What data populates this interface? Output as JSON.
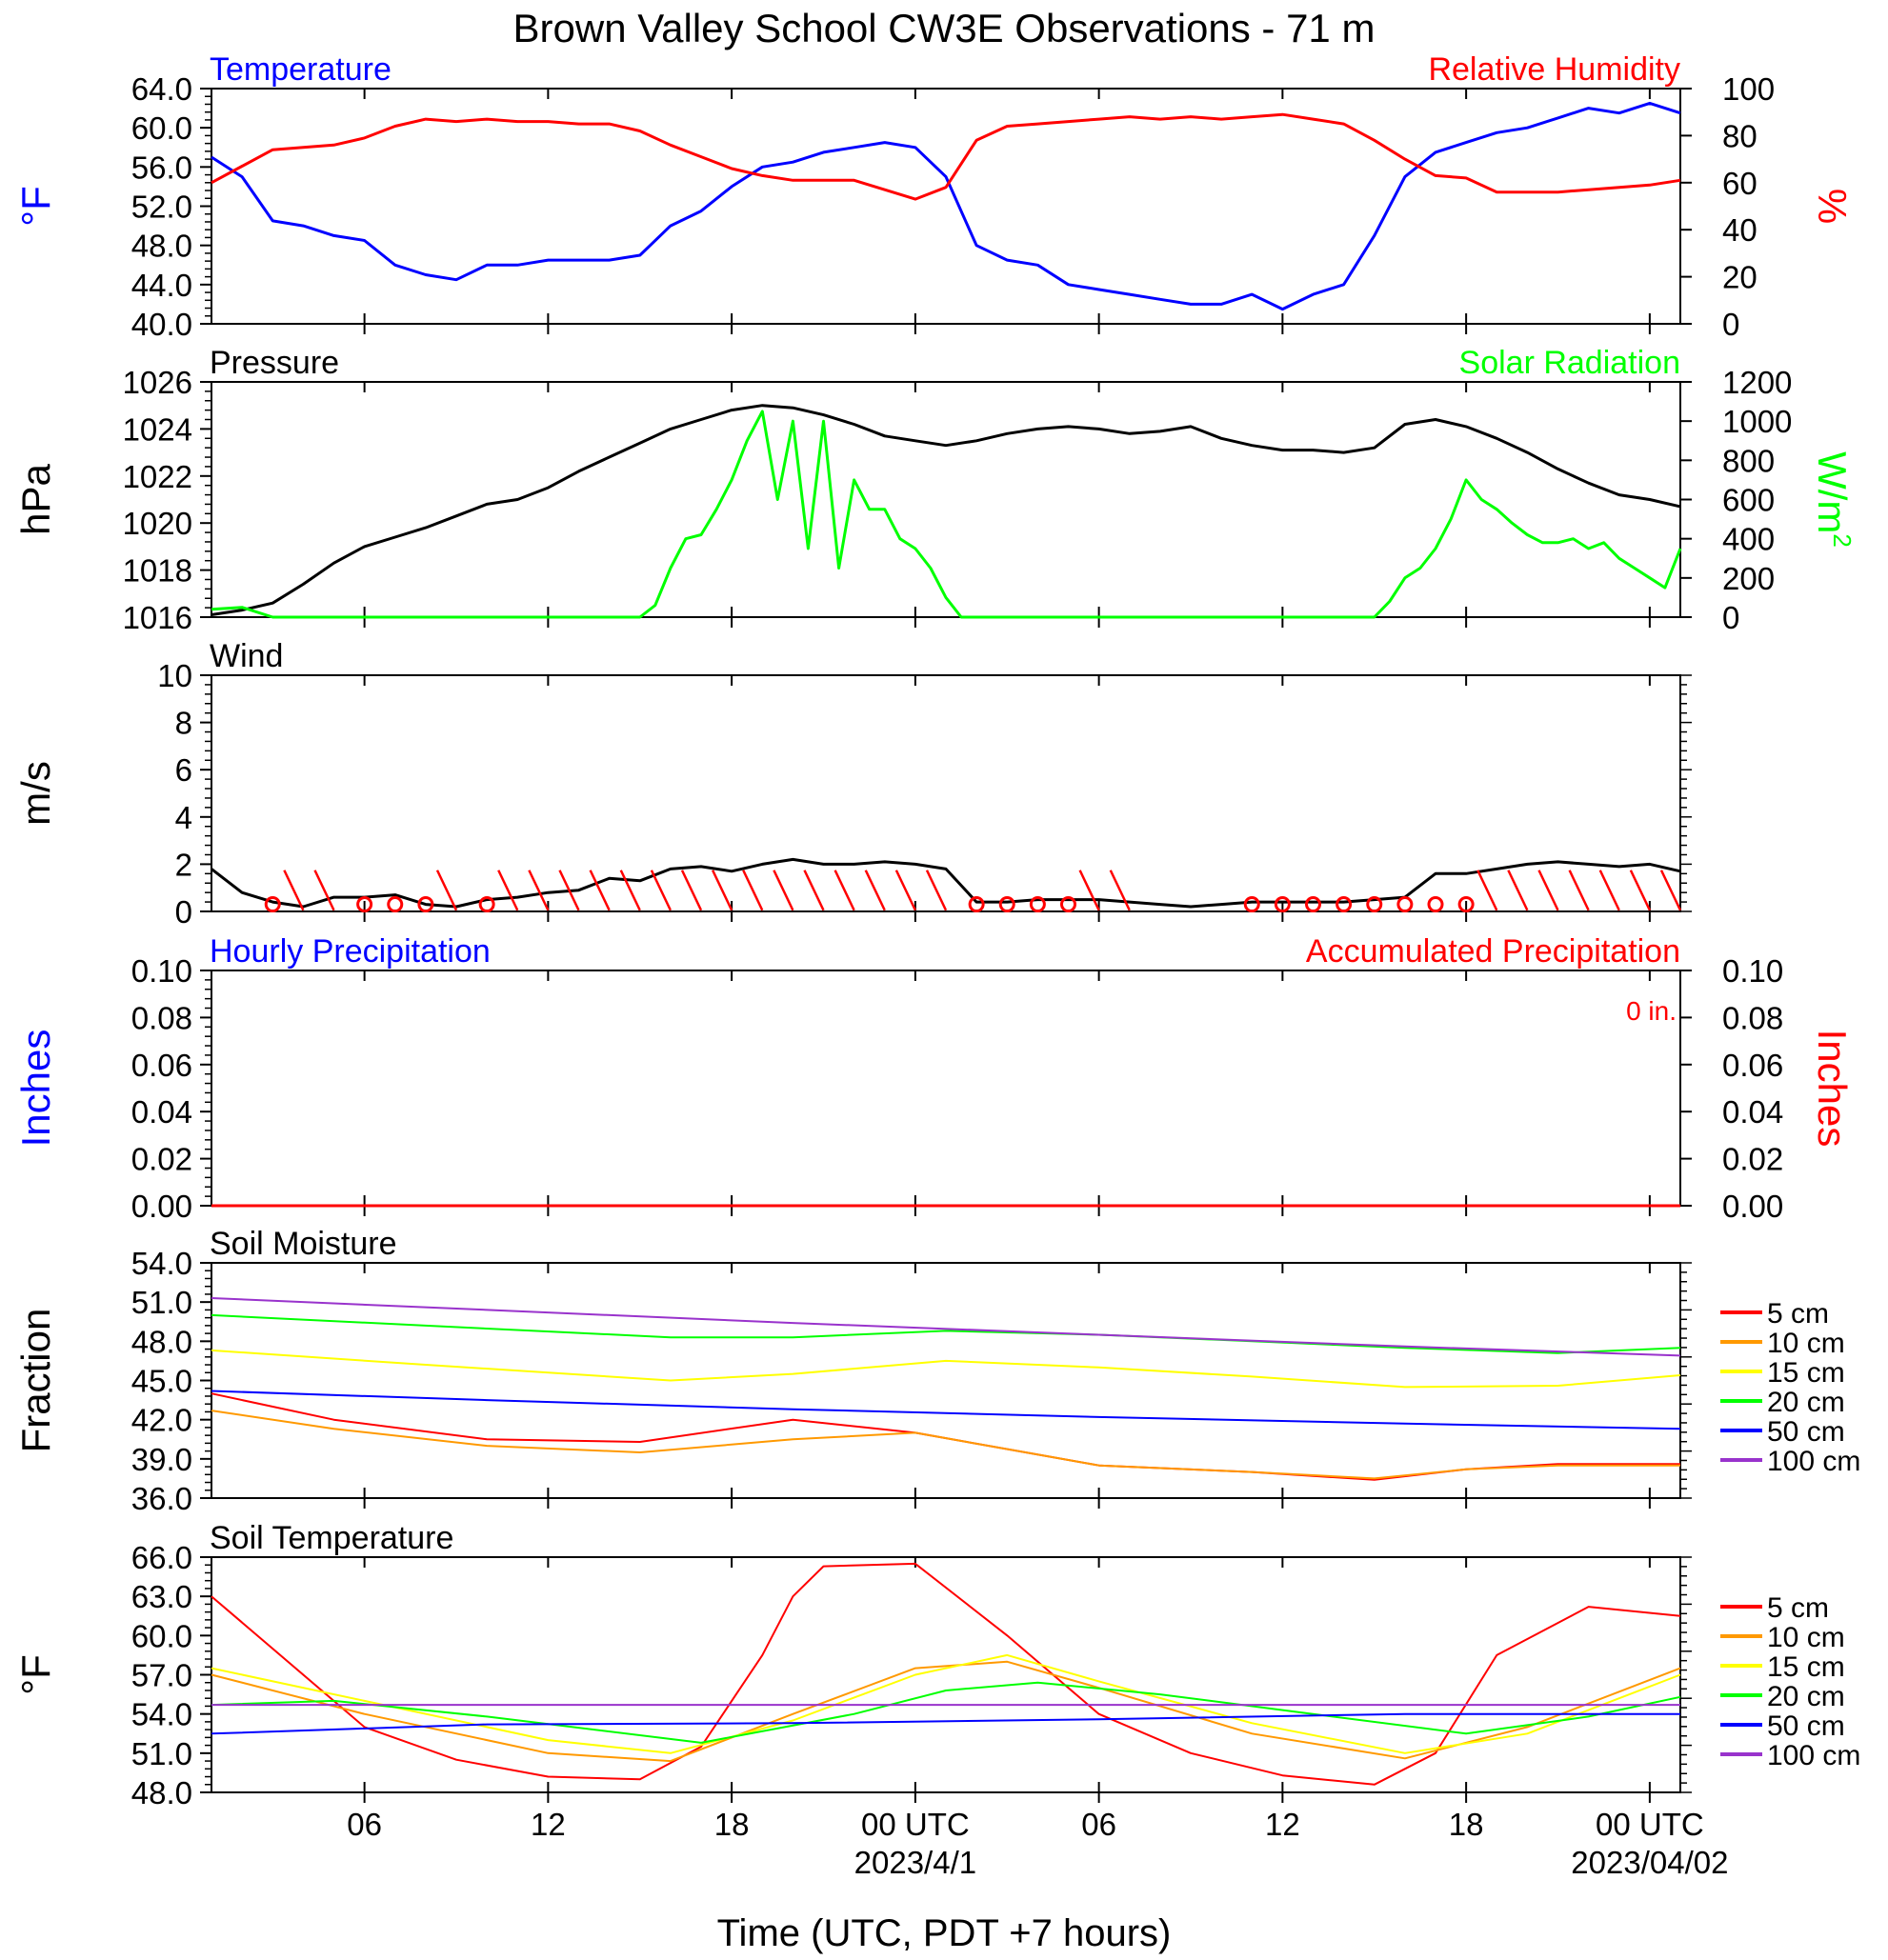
{
  "title": "Brown Valley School CW3E Observations - 71 m",
  "x_axis": {
    "label": "Time (UTC, PDT +7 hours)",
    "ticks": [
      "06",
      "12",
      "18",
      "00 UTC",
      "06",
      "12",
      "18",
      "00 UTC"
    ],
    "tick_hours": [
      6,
      12,
      18,
      24,
      30,
      36,
      42,
      48
    ],
    "date_labels": [
      "2023/4/1",
      "2023/04/02"
    ],
    "date_label_hours": [
      24,
      48
    ],
    "range_hours": [
      1,
      49
    ]
  },
  "colors": {
    "blue": "#0000ff",
    "red": "#ff0000",
    "green": "#00ff00",
    "black": "#000000",
    "orange": "#ff9900",
    "yellow": "#ffff00",
    "purple": "#9933cc"
  },
  "chart_data": [
    {
      "type": "line",
      "title_left": "Temperature",
      "title_right": "Relative Humidity",
      "ylabel_left": "°F",
      "ylabel_right": "%",
      "ylim_left": [
        40,
        64
      ],
      "yticks_left": [
        "64.0",
        "60.0",
        "56.0",
        "52.0",
        "48.0",
        "44.0",
        "40.0"
      ],
      "ylim_right": [
        0,
        100
      ],
      "yticks_right": [
        "100",
        "80",
        "60",
        "40",
        "20",
        "0"
      ],
      "series": [
        {
          "name": "Temperature",
          "axis": "left",
          "color": "#0000ff",
          "x": [
            1,
            2,
            3,
            4,
            5,
            6,
            7,
            8,
            9,
            10,
            11,
            12,
            13,
            14,
            15,
            16,
            17,
            18,
            19,
            20,
            21,
            22,
            23,
            24,
            25,
            26,
            27,
            28,
            29,
            30,
            31,
            32,
            33,
            34,
            35,
            36,
            37,
            38,
            39,
            40,
            41,
            42,
            43,
            44,
            45,
            46,
            47,
            48,
            49
          ],
          "y": [
            57.0,
            55.0,
            50.5,
            50.0,
            49.0,
            48.5,
            46.0,
            45.0,
            44.5,
            46.0,
            46.0,
            46.5,
            46.5,
            46.5,
            47.0,
            50.0,
            51.5,
            54.0,
            56.0,
            56.5,
            57.5,
            58.0,
            58.5,
            58.0,
            55.0,
            48.0,
            46.5,
            46.0,
            44.0,
            43.5,
            43.0,
            42.5,
            42.0,
            42.0,
            43.0,
            41.5,
            43.0,
            44.0,
            49.0,
            55.0,
            57.5,
            58.5,
            59.5,
            60.0,
            61.0,
            62.0,
            61.5,
            62.5,
            61.5
          ]
        },
        {
          "name": "Relative Humidity",
          "axis": "right",
          "color": "#ff0000",
          "x": [
            1,
            2,
            3,
            4,
            5,
            6,
            7,
            8,
            9,
            10,
            11,
            12,
            13,
            14,
            15,
            16,
            17,
            18,
            19,
            20,
            21,
            22,
            23,
            24,
            25,
            26,
            27,
            28,
            29,
            30,
            31,
            32,
            33,
            34,
            35,
            36,
            37,
            38,
            39,
            40,
            41,
            42,
            43,
            44,
            45,
            46,
            47,
            48,
            49
          ],
          "y": [
            60,
            67,
            74,
            75,
            76,
            79,
            84,
            87,
            86,
            87,
            86,
            86,
            85,
            85,
            82,
            76,
            71,
            66,
            63,
            61,
            61,
            61,
            57,
            53,
            58,
            78,
            84,
            85,
            86,
            87,
            88,
            87,
            88,
            87,
            88,
            89,
            87,
            85,
            78,
            70,
            63,
            62,
            56,
            56,
            56,
            57,
            58,
            59,
            61
          ]
        }
      ]
    },
    {
      "type": "line",
      "title_left": "Pressure",
      "title_right": "Solar Radiation",
      "ylabel_left": "hPa",
      "ylabel_right": "W/m2",
      "ylim_left": [
        1016,
        1026
      ],
      "yticks_left": [
        "1026",
        "1024",
        "1022",
        "1020",
        "1018",
        "1016"
      ],
      "ylim_right": [
        0,
        1200
      ],
      "yticks_right": [
        "1200",
        "1000",
        "800",
        "600",
        "400",
        "200",
        "0"
      ],
      "series": [
        {
          "name": "Pressure",
          "axis": "left",
          "color": "#000000",
          "x": [
            1,
            2,
            3,
            4,
            5,
            6,
            7,
            8,
            9,
            10,
            11,
            12,
            13,
            14,
            15,
            16,
            17,
            18,
            19,
            20,
            21,
            22,
            23,
            24,
            25,
            26,
            27,
            28,
            29,
            30,
            31,
            32,
            33,
            34,
            35,
            36,
            37,
            38,
            39,
            40,
            41,
            42,
            43,
            44,
            45,
            46,
            47,
            48,
            49
          ],
          "y": [
            1016.1,
            1016.3,
            1016.6,
            1017.4,
            1018.3,
            1019.0,
            1019.4,
            1019.8,
            1020.3,
            1020.8,
            1021.0,
            1021.5,
            1022.2,
            1022.8,
            1023.4,
            1024.0,
            1024.4,
            1024.8,
            1025.0,
            1024.9,
            1024.6,
            1024.2,
            1023.7,
            1023.5,
            1023.3,
            1023.5,
            1023.8,
            1024.0,
            1024.1,
            1024.0,
            1023.8,
            1023.9,
            1024.1,
            1023.6,
            1023.3,
            1023.1,
            1023.1,
            1023.0,
            1023.2,
            1024.2,
            1024.4,
            1024.1,
            1023.6,
            1023.0,
            1022.3,
            1021.7,
            1021.2,
            1021.0,
            1020.7
          ]
        },
        {
          "name": "Solar Radiation",
          "axis": "right",
          "color": "#00ff00",
          "x": [
            1,
            2,
            3,
            4,
            5,
            6,
            7,
            8,
            9,
            10,
            11,
            12,
            13,
            14,
            15,
            15.5,
            16,
            16.5,
            17,
            17.5,
            18,
            18.5,
            19,
            19.5,
            20,
            20.5,
            21,
            21.5,
            22,
            22.5,
            23,
            23.5,
            24,
            24.5,
            25,
            25.5,
            26,
            27,
            28,
            29,
            30,
            31,
            32,
            33,
            34,
            35,
            36,
            37,
            38,
            39,
            39.5,
            40,
            40.5,
            41,
            41.5,
            42,
            42.5,
            43,
            43.5,
            44,
            44.5,
            45,
            45.5,
            46,
            46.5,
            47,
            47.5,
            48,
            48.5,
            49
          ],
          "y": [
            40,
            50,
            0,
            0,
            0,
            0,
            0,
            0,
            0,
            0,
            0,
            0,
            0,
            0,
            0,
            60,
            250,
            400,
            420,
            550,
            700,
            900,
            1050,
            600,
            1000,
            350,
            1000,
            250,
            700,
            550,
            550,
            400,
            350,
            250,
            100,
            0,
            0,
            0,
            0,
            0,
            0,
            0,
            0,
            0,
            0,
            0,
            0,
            0,
            0,
            0,
            80,
            200,
            250,
            350,
            500,
            700,
            600,
            550,
            480,
            420,
            380,
            380,
            400,
            350,
            380,
            300,
            250,
            200,
            150,
            350
          ]
        }
      ]
    },
    {
      "type": "line",
      "title_left": "Wind",
      "ylabel_left": "m/s",
      "ylim_left": [
        0,
        10
      ],
      "yticks_left": [
        "10",
        "8",
        "6",
        "4",
        "2",
        "0"
      ],
      "series": [
        {
          "name": "Wind",
          "axis": "left",
          "color": "#000000",
          "x": [
            1,
            2,
            3,
            4,
            5,
            6,
            7,
            8,
            9,
            10,
            11,
            12,
            13,
            14,
            15,
            16,
            17,
            18,
            19,
            20,
            21,
            22,
            23,
            24,
            25,
            26,
            27,
            28,
            29,
            30,
            31,
            32,
            33,
            34,
            35,
            36,
            37,
            38,
            39,
            40,
            41,
            42,
            43,
            44,
            45,
            46,
            47,
            48,
            49
          ],
          "y": [
            1.8,
            0.8,
            0.4,
            0.2,
            0.6,
            0.6,
            0.7,
            0.3,
            0.2,
            0.5,
            0.6,
            0.8,
            0.9,
            1.4,
            1.3,
            1.8,
            1.9,
            1.7,
            2.0,
            2.2,
            2.0,
            2.0,
            2.1,
            2.0,
            1.8,
            0.4,
            0.4,
            0.5,
            0.5,
            0.5,
            0.4,
            0.3,
            0.2,
            0.3,
            0.4,
            0.4,
            0.4,
            0.4,
            0.5,
            0.6,
            1.6,
            1.6,
            1.8,
            2.0,
            2.1,
            2.0,
            1.9,
            2.0,
            1.7
          ]
        }
      ],
      "calm_marks_hours": [
        3,
        6,
        7,
        8,
        10,
        26,
        27,
        28,
        29,
        35,
        36,
        37,
        38,
        39,
        40,
        41,
        42
      ],
      "barb_hours": [
        4,
        5,
        9,
        11,
        12,
        13,
        14,
        15,
        16,
        17,
        18,
        19,
        20,
        21,
        22,
        23,
        24,
        25,
        30,
        31,
        43,
        44,
        45,
        46,
        47,
        48,
        49
      ]
    },
    {
      "type": "line",
      "title_left": "Hourly Precipitation",
      "title_right": "Accumulated Precipitation",
      "annotation": "0 in.",
      "ylabel_left": "Inches",
      "ylabel_right": "Inches",
      "ylim_left": [
        0,
        0.1
      ],
      "yticks_left": [
        "0.10",
        "0.08",
        "0.06",
        "0.04",
        "0.02",
        "0.00"
      ],
      "ylim_right": [
        0,
        0.1
      ],
      "yticks_right": [
        "0.10",
        "0.08",
        "0.06",
        "0.04",
        "0.02",
        "0.00"
      ],
      "series": [
        {
          "name": "Hourly Precipitation",
          "axis": "left",
          "color": "#0000ff",
          "x": [
            1,
            49
          ],
          "y": [
            0,
            0
          ]
        },
        {
          "name": "Accumulated Precipitation",
          "axis": "left",
          "color": "#ff0000",
          "x": [
            1,
            49
          ],
          "y": [
            0,
            0
          ]
        }
      ]
    },
    {
      "type": "line",
      "title_left": "Soil Moisture",
      "ylabel_left": "Fraction",
      "ylim_left": [
        36,
        54
      ],
      "yticks_left": [
        "54.0",
        "51.0",
        "48.0",
        "45.0",
        "42.0",
        "39.0",
        "36.0"
      ],
      "legend": "right",
      "series": [
        {
          "name": "5 cm",
          "color": "#ff0000",
          "x": [
            1,
            5,
            10,
            15,
            20,
            24,
            30,
            35,
            39,
            42,
            45,
            49
          ],
          "y": [
            44.0,
            42.0,
            40.5,
            40.3,
            42.0,
            41.0,
            38.5,
            38.0,
            37.4,
            38.2,
            38.6,
            38.6
          ]
        },
        {
          "name": "10 cm",
          "color": "#ff9900",
          "x": [
            1,
            5,
            10,
            15,
            20,
            24,
            30,
            35,
            39,
            42,
            45,
            49
          ],
          "y": [
            42.7,
            41.3,
            40.0,
            39.5,
            40.5,
            41.0,
            38.5,
            38.0,
            37.5,
            38.2,
            38.5,
            38.5
          ]
        },
        {
          "name": "15 cm",
          "color": "#ffff00",
          "x": [
            1,
            8,
            16,
            20,
            25,
            30,
            35,
            40,
            45,
            49
          ],
          "y": [
            47.3,
            46.2,
            45.0,
            45.5,
            46.5,
            46.0,
            45.3,
            44.5,
            44.6,
            45.4
          ]
        },
        {
          "name": "20 cm",
          "color": "#00ff00",
          "x": [
            1,
            8,
            16,
            20,
            25,
            30,
            35,
            40,
            45,
            49
          ],
          "y": [
            50.0,
            49.2,
            48.3,
            48.3,
            48.8,
            48.5,
            48.0,
            47.5,
            47.1,
            47.5
          ]
        },
        {
          "name": "50 cm",
          "color": "#0000ff",
          "x": [
            1,
            10,
            20,
            30,
            40,
            49
          ],
          "y": [
            44.2,
            43.5,
            42.8,
            42.2,
            41.7,
            41.3
          ]
        },
        {
          "name": "100 cm",
          "color": "#9933cc",
          "x": [
            1,
            10,
            20,
            30,
            40,
            49
          ],
          "y": [
            51.3,
            50.4,
            49.4,
            48.5,
            47.6,
            46.9
          ]
        }
      ]
    },
    {
      "type": "line",
      "title_left": "Soil Temperature",
      "ylabel_left": "°F",
      "ylim_left": [
        48,
        66
      ],
      "yticks_left": [
        "66.0",
        "63.0",
        "60.0",
        "57.0",
        "54.0",
        "51.0",
        "48.0"
      ],
      "legend": "right",
      "series": [
        {
          "name": "5 cm",
          "color": "#ff0000",
          "x": [
            1,
            3,
            6,
            9,
            12,
            15,
            17,
            19,
            20,
            21,
            24,
            27,
            30,
            33,
            36,
            39,
            41,
            43,
            46,
            49
          ],
          "y": [
            63.0,
            59.0,
            53.0,
            50.5,
            49.2,
            49.0,
            51.5,
            58.5,
            63.0,
            65.3,
            65.5,
            60.0,
            54.0,
            51.0,
            49.3,
            48.6,
            51.0,
            58.5,
            62.2,
            61.5
          ]
        },
        {
          "name": "10 cm",
          "color": "#ff9900",
          "x": [
            1,
            6,
            12,
            16,
            20,
            24,
            27,
            30,
            35,
            40,
            44,
            49
          ],
          "y": [
            57.0,
            54.0,
            51.0,
            50.4,
            54.0,
            57.5,
            58.0,
            56.0,
            52.5,
            50.6,
            53.0,
            57.5
          ]
        },
        {
          "name": "15 cm",
          "color": "#ffff00",
          "x": [
            1,
            6,
            12,
            16,
            20,
            24,
            27,
            30,
            35,
            40,
            44,
            49
          ],
          "y": [
            57.5,
            55.0,
            52.0,
            51.0,
            53.5,
            57.0,
            58.5,
            56.5,
            53.3,
            51.0,
            52.5,
            57.0
          ]
        },
        {
          "name": "20 cm",
          "color": "#00ff00",
          "x": [
            1,
            5,
            10,
            17,
            22,
            25,
            28,
            32,
            37,
            42,
            46,
            49
          ],
          "y": [
            54.7,
            55.0,
            53.8,
            51.8,
            54.0,
            55.8,
            56.4,
            55.5,
            54.0,
            52.5,
            53.8,
            55.3
          ]
        },
        {
          "name": "50 cm",
          "color": "#0000ff",
          "x": [
            1,
            10,
            20,
            30,
            40,
            49
          ],
          "y": [
            52.5,
            53.2,
            53.3,
            53.6,
            54.0,
            54.0
          ]
        },
        {
          "name": "100 cm",
          "color": "#9933cc",
          "x": [
            1,
            49
          ],
          "y": [
            54.7,
            54.7
          ]
        }
      ]
    }
  ]
}
